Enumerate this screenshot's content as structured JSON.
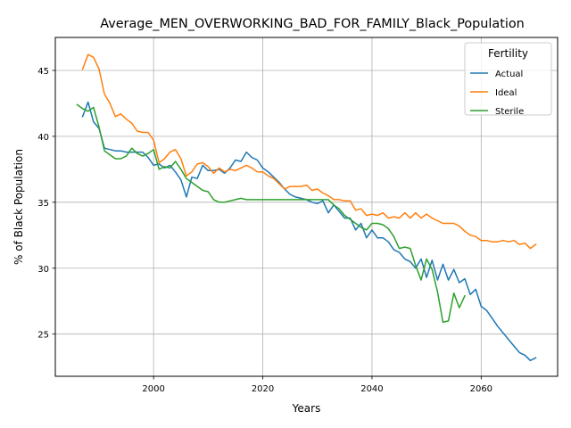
{
  "chart_data": {
    "type": "line",
    "title": "Average_MEN_OVERWORKING_BAD_FOR_FAMILY_Black_Population",
    "xlabel": "Years",
    "ylabel": "% of Black Population",
    "xlim": [
      1982,
      2074
    ],
    "ylim": [
      21.8,
      47.5
    ],
    "xticks": [
      2000,
      2020,
      2040,
      2060
    ],
    "yticks": [
      25,
      30,
      35,
      40,
      45
    ],
    "grid": true,
    "legend": {
      "title": "Fertility",
      "placement": "top-right"
    },
    "series": [
      {
        "name": "Actual",
        "color": "#1f77b4",
        "x": [
          1987,
          1988,
          1989,
          1990,
          1991,
          1992,
          1993,
          1994,
          1995,
          1996,
          1997,
          1998,
          1999,
          2000,
          2001,
          2002,
          2003,
          2004,
          2005,
          2006,
          2007,
          2008,
          2009,
          2010,
          2011,
          2012,
          2013,
          2014,
          2015,
          2016,
          2017,
          2018,
          2019,
          2020,
          2021,
          2022,
          2023,
          2024,
          2025,
          2026,
          2027,
          2028,
          2029,
          2030,
          2031,
          2032,
          2033,
          2034,
          2035,
          2036,
          2037,
          2038,
          2039,
          2040,
          2041,
          2042,
          2043,
          2044,
          2045,
          2046,
          2047,
          2048,
          2049,
          2050,
          2051,
          2052,
          2053,
          2054,
          2055,
          2056,
          2057,
          2058,
          2059,
          2060,
          2061,
          2062,
          2063,
          2064,
          2065,
          2066,
          2067,
          2068,
          2069,
          2070
        ],
        "values": [
          41.5,
          42.6,
          41.1,
          40.6,
          39.1,
          39.0,
          38.9,
          38.9,
          38.8,
          38.8,
          38.8,
          38.8,
          38.4,
          37.8,
          37.9,
          37.6,
          37.8,
          37.3,
          36.7,
          35.4,
          36.9,
          36.8,
          37.8,
          37.4,
          37.4,
          37.5,
          37.2,
          37.6,
          38.2,
          38.1,
          38.8,
          38.4,
          38.2,
          37.6,
          37.3,
          36.9,
          36.5,
          36.0,
          35.6,
          35.4,
          35.3,
          35.2,
          35.0,
          34.9,
          35.1,
          34.2,
          34.8,
          34.3,
          33.8,
          33.8,
          32.9,
          33.4,
          32.3,
          32.9,
          32.3,
          32.3,
          32.0,
          31.4,
          31.2,
          30.7,
          30.5,
          30.0,
          30.7,
          29.3,
          30.6,
          29.1,
          30.3,
          29.1,
          29.9,
          28.9,
          29.2,
          28.0,
          28.4,
          27.1,
          26.8,
          26.2,
          25.6,
          25.1,
          24.6,
          24.1,
          23.6,
          23.4,
          23.0,
          23.2
        ]
      },
      {
        "name": "Ideal",
        "color": "#ff7f0e",
        "x": [
          1987,
          1988,
          1989,
          1990,
          1991,
          1992,
          1993,
          1994,
          1995,
          1996,
          1997,
          1998,
          1999,
          2000,
          2001,
          2002,
          2003,
          2004,
          2005,
          2006,
          2007,
          2008,
          2009,
          2010,
          2011,
          2012,
          2013,
          2014,
          2015,
          2016,
          2017,
          2018,
          2019,
          2020,
          2021,
          2022,
          2023,
          2024,
          2025,
          2026,
          2027,
          2028,
          2029,
          2030,
          2031,
          2032,
          2033,
          2034,
          2035,
          2036,
          2037,
          2038,
          2039,
          2040,
          2041,
          2042,
          2043,
          2044,
          2045,
          2046,
          2047,
          2048,
          2049,
          2050,
          2051,
          2052,
          2053,
          2054,
          2055,
          2056,
          2057,
          2058,
          2059,
          2060,
          2061,
          2062,
          2063,
          2064,
          2065,
          2066,
          2067,
          2068,
          2069,
          2070
        ],
        "values": [
          45.1,
          46.2,
          46.0,
          45.1,
          43.2,
          42.5,
          41.5,
          41.7,
          41.3,
          41.0,
          40.4,
          40.3,
          40.3,
          39.7,
          38.0,
          38.3,
          38.8,
          39.0,
          38.3,
          37.0,
          37.3,
          37.9,
          38.0,
          37.7,
          37.2,
          37.6,
          37.3,
          37.5,
          37.4,
          37.6,
          37.8,
          37.6,
          37.3,
          37.3,
          37.0,
          36.8,
          36.4,
          36.0,
          36.2,
          36.2,
          36.2,
          36.3,
          35.9,
          36.0,
          35.7,
          35.5,
          35.2,
          35.2,
          35.1,
          35.1,
          34.4,
          34.5,
          34.0,
          34.1,
          34.0,
          34.2,
          33.8,
          33.9,
          33.8,
          34.2,
          33.8,
          34.2,
          33.8,
          34.1,
          33.8,
          33.6,
          33.4,
          33.4,
          33.4,
          33.2,
          32.8,
          32.5,
          32.4,
          32.1,
          32.1,
          32.0,
          32.0,
          32.1,
          32.0,
          32.1,
          31.8,
          31.9,
          31.5,
          31.8
        ]
      },
      {
        "name": "Sterile",
        "color": "#2ca02c",
        "x": [
          1986,
          1987,
          1988,
          1989,
          1990,
          1991,
          1992,
          1993,
          1994,
          1995,
          1996,
          1997,
          1998,
          1999,
          2000,
          2001,
          2002,
          2003,
          2004,
          2005,
          2006,
          2007,
          2008,
          2009,
          2010,
          2011,
          2012,
          2013,
          2014,
          2015,
          2016,
          2017,
          2018,
          2019,
          2020,
          2021,
          2022,
          2023,
          2024,
          2025,
          2026,
          2027,
          2028,
          2029,
          2030,
          2031,
          2032,
          2033,
          2034,
          2035,
          2036,
          2037,
          2038,
          2039,
          2040,
          2041,
          2042,
          2043,
          2044,
          2045,
          2046,
          2047,
          2048,
          2049,
          2050,
          2051,
          2052,
          2053,
          2054,
          2055,
          2056,
          2057
        ],
        "values": [
          42.4,
          42.1,
          41.9,
          42.2,
          40.7,
          38.9,
          38.6,
          38.3,
          38.3,
          38.5,
          39.1,
          38.7,
          38.5,
          38.7,
          39.0,
          37.5,
          37.7,
          37.6,
          38.1,
          37.5,
          36.8,
          36.5,
          36.2,
          35.9,
          35.8,
          35.2,
          35.0,
          35.0,
          35.1,
          35.2,
          35.3,
          35.2,
          35.2,
          35.2,
          35.2,
          35.2,
          35.2,
          35.2,
          35.2,
          35.2,
          35.2,
          35.2,
          35.2,
          35.2,
          35.2,
          35.2,
          35.2,
          34.8,
          34.5,
          34.0,
          33.7,
          33.4,
          33.1,
          32.9,
          33.4,
          33.4,
          33.3,
          33.0,
          32.4,
          31.5,
          31.6,
          31.5,
          30.2,
          29.1,
          30.7,
          29.9,
          28.2,
          25.9,
          26.0,
          28.1,
          27.0,
          27.9
        ]
      }
    ]
  }
}
